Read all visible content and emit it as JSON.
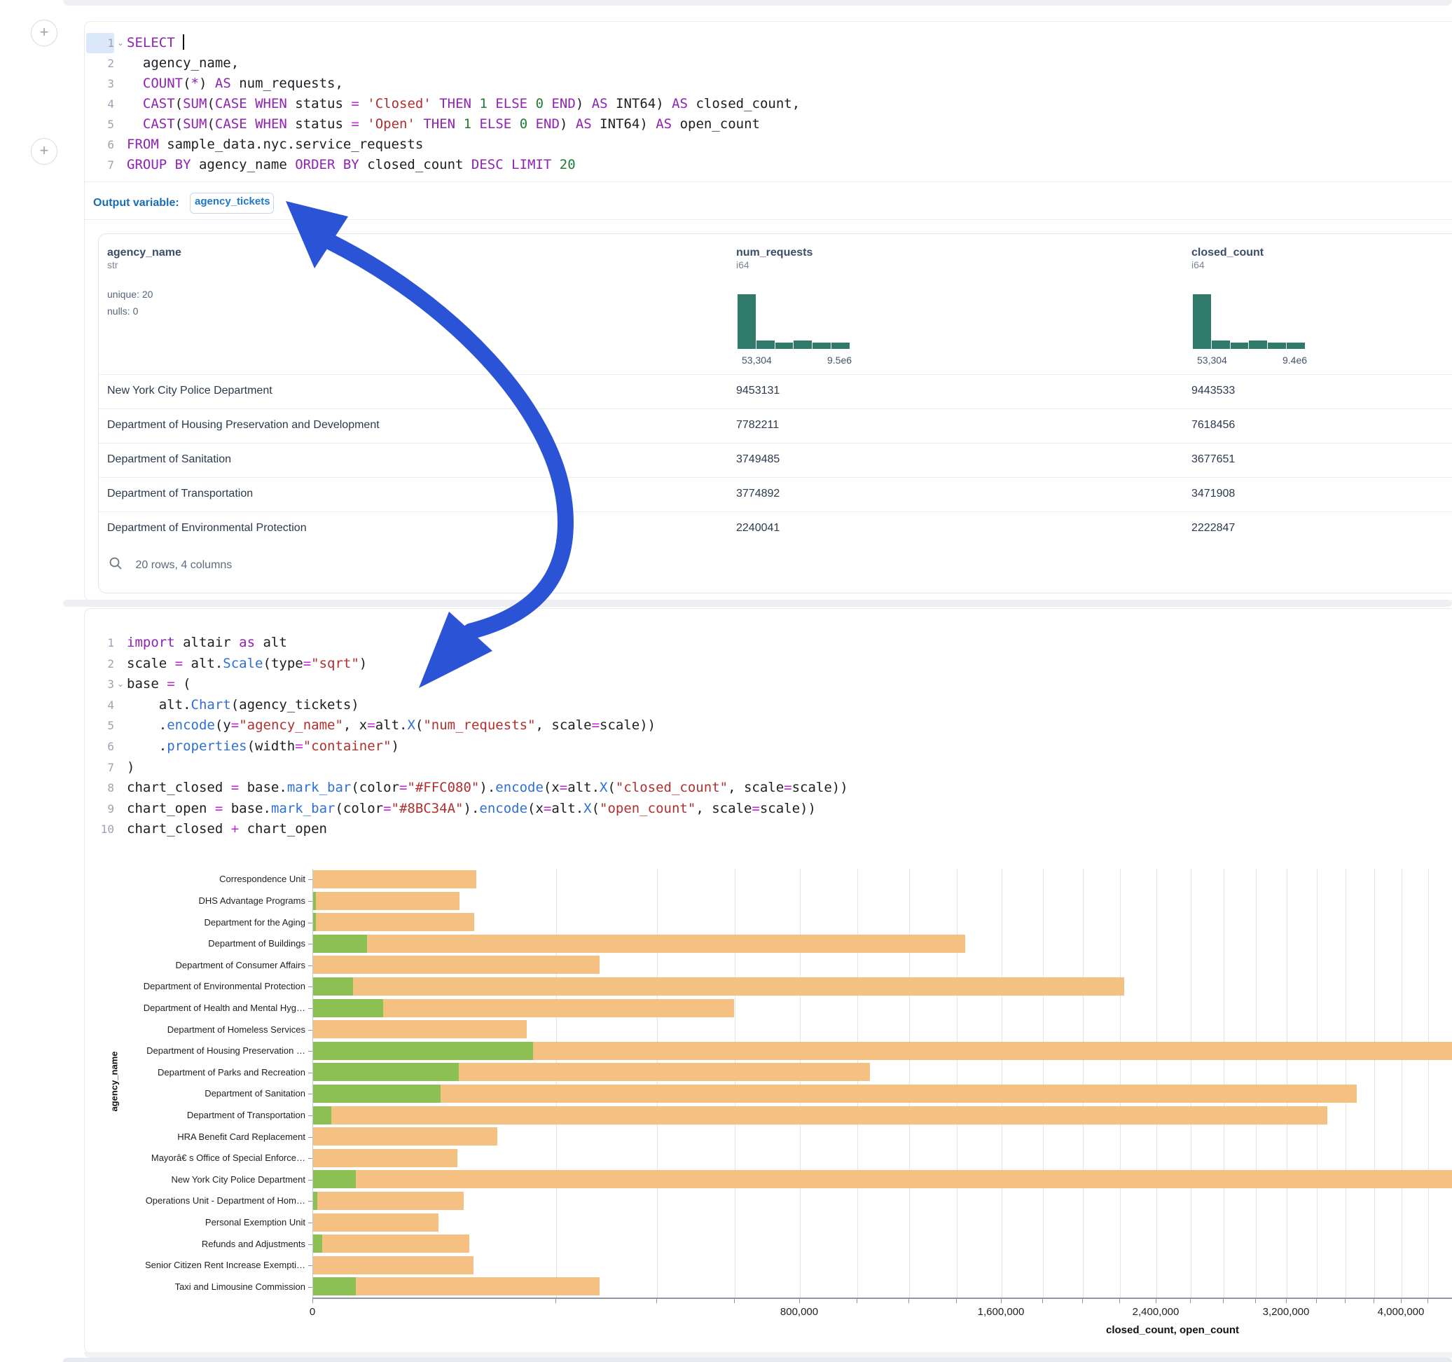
{
  "sql_cell": {
    "lines": [
      {
        "n": "1",
        "fold": true,
        "tokens": [
          [
            "kw",
            "SELECT"
          ],
          [
            "pl",
            " "
          ],
          [
            "caret",
            ""
          ]
        ]
      },
      {
        "n": "2",
        "tokens": [
          [
            "pl",
            "  agency_name,"
          ]
        ]
      },
      {
        "n": "3",
        "tokens": [
          [
            "kw",
            "COUNT",
            "  "
          ],
          [
            "pl",
            "("
          ],
          [
            "kw",
            "*"
          ],
          [
            "pl",
            ") "
          ],
          [
            "kw",
            "AS"
          ],
          [
            "pl",
            " num_requests,"
          ]
        ]
      },
      {
        "n": "4",
        "tokens": [
          [
            "pl",
            "  "
          ],
          [
            "kw",
            "CAST"
          ],
          [
            "pl",
            "("
          ],
          [
            "kw",
            "SUM"
          ],
          [
            "pl",
            "("
          ],
          [
            "kw",
            "CASE WHEN"
          ],
          [
            "pl",
            " status "
          ],
          [
            "op",
            "="
          ],
          [
            "pl",
            " "
          ],
          [
            "str",
            "'Closed'"
          ],
          [
            "pl",
            " "
          ],
          [
            "kw",
            "THEN"
          ],
          [
            "pl",
            " "
          ],
          [
            "num",
            "1"
          ],
          [
            "pl",
            " "
          ],
          [
            "kw",
            "ELSE"
          ],
          [
            "pl",
            " "
          ],
          [
            "num",
            "0"
          ],
          [
            "pl",
            " "
          ],
          [
            "kw",
            "END"
          ],
          [
            "pl",
            ") "
          ],
          [
            "kw",
            "AS"
          ],
          [
            "pl",
            " INT64) "
          ],
          [
            "kw",
            "AS"
          ],
          [
            "pl",
            " closed_count,"
          ]
        ]
      },
      {
        "n": "5",
        "tokens": [
          [
            "pl",
            "  "
          ],
          [
            "kw",
            "CAST"
          ],
          [
            "pl",
            "("
          ],
          [
            "kw",
            "SUM"
          ],
          [
            "pl",
            "("
          ],
          [
            "kw",
            "CASE WHEN"
          ],
          [
            "pl",
            " status "
          ],
          [
            "op",
            "="
          ],
          [
            "pl",
            " "
          ],
          [
            "str",
            "'Open'"
          ],
          [
            "pl",
            " "
          ],
          [
            "kw",
            "THEN"
          ],
          [
            "pl",
            " "
          ],
          [
            "num",
            "1"
          ],
          [
            "pl",
            " "
          ],
          [
            "kw",
            "ELSE"
          ],
          [
            "pl",
            " "
          ],
          [
            "num",
            "0"
          ],
          [
            "pl",
            " "
          ],
          [
            "kw",
            "END"
          ],
          [
            "pl",
            ") "
          ],
          [
            "kw",
            "AS"
          ],
          [
            "pl",
            " INT64) "
          ],
          [
            "kw",
            "AS"
          ],
          [
            "pl",
            " open_count"
          ]
        ]
      },
      {
        "n": "6",
        "tokens": [
          [
            "kw",
            "FROM"
          ],
          [
            "pl",
            " sample_data.nyc.service_requests"
          ]
        ]
      },
      {
        "n": "7",
        "tokens": [
          [
            "kw",
            "GROUP BY"
          ],
          [
            "pl",
            " agency_name "
          ],
          [
            "kw",
            "ORDER BY"
          ],
          [
            "pl",
            " closed_count "
          ],
          [
            "kw",
            "DESC"
          ],
          [
            "pl",
            " "
          ],
          [
            "kw",
            "LIMIT"
          ],
          [
            "pl",
            " "
          ],
          [
            "num",
            "20"
          ]
        ]
      }
    ]
  },
  "output_bar": {
    "label": "Output variable:",
    "variable": "agency_tickets"
  },
  "result_table": {
    "columns": [
      {
        "name": "agency_name",
        "type": "str",
        "unique": "unique: 20",
        "nulls": "nulls: 0"
      },
      {
        "name": "num_requests",
        "type": "i64",
        "hist_min": "53,304",
        "hist_max": "9.5e6"
      },
      {
        "name": "closed_count",
        "type": "i64",
        "hist_min": "53,304",
        "hist_max": "9.4e6"
      }
    ],
    "rows": [
      [
        "New York City Police Department",
        "9453131",
        "9443533"
      ],
      [
        "Department of Housing Preservation and Development",
        "7782211",
        "7618456"
      ],
      [
        "Department of Sanitation",
        "3749485",
        "3677651"
      ],
      [
        "Department of Transportation",
        "3774892",
        "3471908"
      ],
      [
        "Department of Environmental Protection",
        "2240041",
        "2222847"
      ]
    ],
    "footer": "20 rows, 4 columns"
  },
  "python_cell": {
    "lines": [
      {
        "n": "1",
        "tokens": [
          [
            "kw",
            "import"
          ],
          [
            "pl",
            " altair "
          ],
          [
            "kw",
            "as"
          ],
          [
            "pl",
            " alt"
          ]
        ]
      },
      {
        "n": "2",
        "tokens": [
          [
            "pl",
            "scale "
          ],
          [
            "op",
            "="
          ],
          [
            "pl",
            " alt."
          ],
          [
            "fn",
            "Scale"
          ],
          [
            "pl",
            "(type"
          ],
          [
            "op",
            "="
          ],
          [
            "str",
            "\"sqrt\""
          ],
          [
            "pl",
            ")"
          ]
        ]
      },
      {
        "n": "3",
        "fold": true,
        "tokens": [
          [
            "pl",
            "base "
          ],
          [
            "op",
            "="
          ],
          [
            "pl",
            " ("
          ]
        ]
      },
      {
        "n": "4",
        "tokens": [
          [
            "pl",
            "    alt."
          ],
          [
            "fn",
            "Chart"
          ],
          [
            "pl",
            "(agency_tickets)"
          ]
        ]
      },
      {
        "n": "5",
        "tokens": [
          [
            "pl",
            "    ."
          ],
          [
            "fn",
            "encode"
          ],
          [
            "pl",
            "(y"
          ],
          [
            "op",
            "="
          ],
          [
            "str",
            "\"agency_name\""
          ],
          [
            "pl",
            ", x"
          ],
          [
            "op",
            "="
          ],
          [
            "pl",
            "alt."
          ],
          [
            "fn",
            "X"
          ],
          [
            "pl",
            "("
          ],
          [
            "str",
            "\"num_requests\""
          ],
          [
            "pl",
            ", scale"
          ],
          [
            "op",
            "="
          ],
          [
            "pl",
            "scale))"
          ]
        ]
      },
      {
        "n": "6",
        "tokens": [
          [
            "pl",
            "    ."
          ],
          [
            "fn",
            "properties"
          ],
          [
            "pl",
            "(width"
          ],
          [
            "op",
            "="
          ],
          [
            "str",
            "\"container\""
          ],
          [
            "pl",
            ")"
          ]
        ]
      },
      {
        "n": "7",
        "tokens": [
          [
            "pl",
            ")"
          ]
        ]
      },
      {
        "n": "8",
        "tokens": [
          [
            "pl",
            "chart_closed "
          ],
          [
            "op",
            "="
          ],
          [
            "pl",
            " base."
          ],
          [
            "fn",
            "mark_bar"
          ],
          [
            "pl",
            "(color"
          ],
          [
            "op",
            "="
          ],
          [
            "str",
            "\"#FFC080\""
          ],
          [
            "pl",
            ")."
          ],
          [
            "fn",
            "encode"
          ],
          [
            "pl",
            "(x"
          ],
          [
            "op",
            "="
          ],
          [
            "pl",
            "alt."
          ],
          [
            "fn",
            "X"
          ],
          [
            "pl",
            "("
          ],
          [
            "str",
            "\"closed_count\""
          ],
          [
            "pl",
            ", scale"
          ],
          [
            "op",
            "="
          ],
          [
            "pl",
            "scale))"
          ]
        ]
      },
      {
        "n": "9",
        "tokens": [
          [
            "pl",
            "chart_open "
          ],
          [
            "op",
            "="
          ],
          [
            "pl",
            " base."
          ],
          [
            "fn",
            "mark_bar"
          ],
          [
            "pl",
            "(color"
          ],
          [
            "op",
            "="
          ],
          [
            "str",
            "\"#8BC34A\""
          ],
          [
            "pl",
            ")."
          ],
          [
            "fn",
            "encode"
          ],
          [
            "pl",
            "(x"
          ],
          [
            "op",
            "="
          ],
          [
            "pl",
            "alt."
          ],
          [
            "fn",
            "X"
          ],
          [
            "pl",
            "("
          ],
          [
            "str",
            "\"open_count\""
          ],
          [
            "pl",
            ", scale"
          ],
          [
            "op",
            "="
          ],
          [
            "pl",
            "scale))"
          ]
        ]
      },
      {
        "n": "10",
        "tokens": [
          [
            "pl",
            "chart_closed "
          ],
          [
            "op",
            "+"
          ],
          [
            "pl",
            " chart_open"
          ]
        ]
      }
    ]
  },
  "chart_data": [
    {
      "type": "bar",
      "orientation": "horizontal",
      "title": "",
      "xlabel": "closed_count, open_count",
      "ylabel": "agency_name",
      "x_scale": "sqrt",
      "x_domain": [
        0,
        10000000
      ],
      "x_tick_step": 200000,
      "x_label_step": 800000,
      "x_tick_labels_visible": [
        "0",
        "800,000",
        "1,600,000",
        "2,400,000",
        "3,200,000",
        "4,000,000"
      ],
      "grid": true,
      "legend": "none",
      "colors": {
        "closed_count": "#f4c182",
        "open_count": "#8cc053"
      },
      "categories": [
        {
          "label": "Correspondence Unit",
          "closed": 90000,
          "open": 0
        },
        {
          "label": "DHS Advantage Programs",
          "closed": 72500,
          "open": 30
        },
        {
          "label": "Department for the Aging",
          "closed": 88000,
          "open": 30
        },
        {
          "label": "Department of Buildings",
          "closed": 1436000,
          "open": 9800
        },
        {
          "label": "Department of Consumer Affairs",
          "closed": 277000,
          "open": 0
        },
        {
          "label": "Department of Environmental Protection",
          "closed": 2222847,
          "open": 5300
        },
        {
          "label": "Department of Health and Mental Hyg…",
          "closed": 598000,
          "open": 16600
        },
        {
          "label": "Department of Homeless Services",
          "closed": 154000,
          "open": 0
        },
        {
          "label": "Department of Housing Preservation …",
          "closed": 7618456,
          "open": 163000
        },
        {
          "label": "Department of Parks and Recreation",
          "closed": 1047000,
          "open": 72000
        },
        {
          "label": "Department of Sanitation",
          "closed": 3677651,
          "open": 55000
        },
        {
          "label": "Department of Transportation",
          "closed": 3471908,
          "open": 1150
        },
        {
          "label": "HRA Benefit Card Replacement",
          "closed": 114600,
          "open": 0
        },
        {
          "label": "Mayorâ€ s Office of Special Enforce…",
          "closed": 70300,
          "open": 0
        },
        {
          "label": "New York City Police Department",
          "closed": 9443533,
          "open": 6200
        },
        {
          "label": "Operations Unit - Department of Hom…",
          "closed": 76600,
          "open": 60
        },
        {
          "label": "Personal Exemption Unit",
          "closed": 53304,
          "open": 0
        },
        {
          "label": "Refunds and Adjustments",
          "closed": 82400,
          "open": 280
        },
        {
          "label": "Senior Citizen Rent Increase Exempti…",
          "closed": 86900,
          "open": 0
        },
        {
          "label": "Taxi and Limousine Commission",
          "closed": 277000,
          "open": 6100
        }
      ]
    },
    {
      "type": "bar",
      "role": "column-summary-histogram",
      "column": "num_requests",
      "x_range_labels": [
        "53,304",
        "9.5e6"
      ],
      "values_relative": [
        1,
        0.16,
        0.11,
        0.16,
        0.11,
        0.12
      ]
    },
    {
      "type": "bar",
      "role": "column-summary-histogram",
      "column": "closed_count",
      "x_range_labels": [
        "53,304",
        "9.4e6"
      ],
      "values_relative": [
        1,
        0.16,
        0.11,
        0.16,
        0.11,
        0.12
      ]
    }
  ],
  "annotation": {
    "arrow_color": "#2b53d6"
  }
}
